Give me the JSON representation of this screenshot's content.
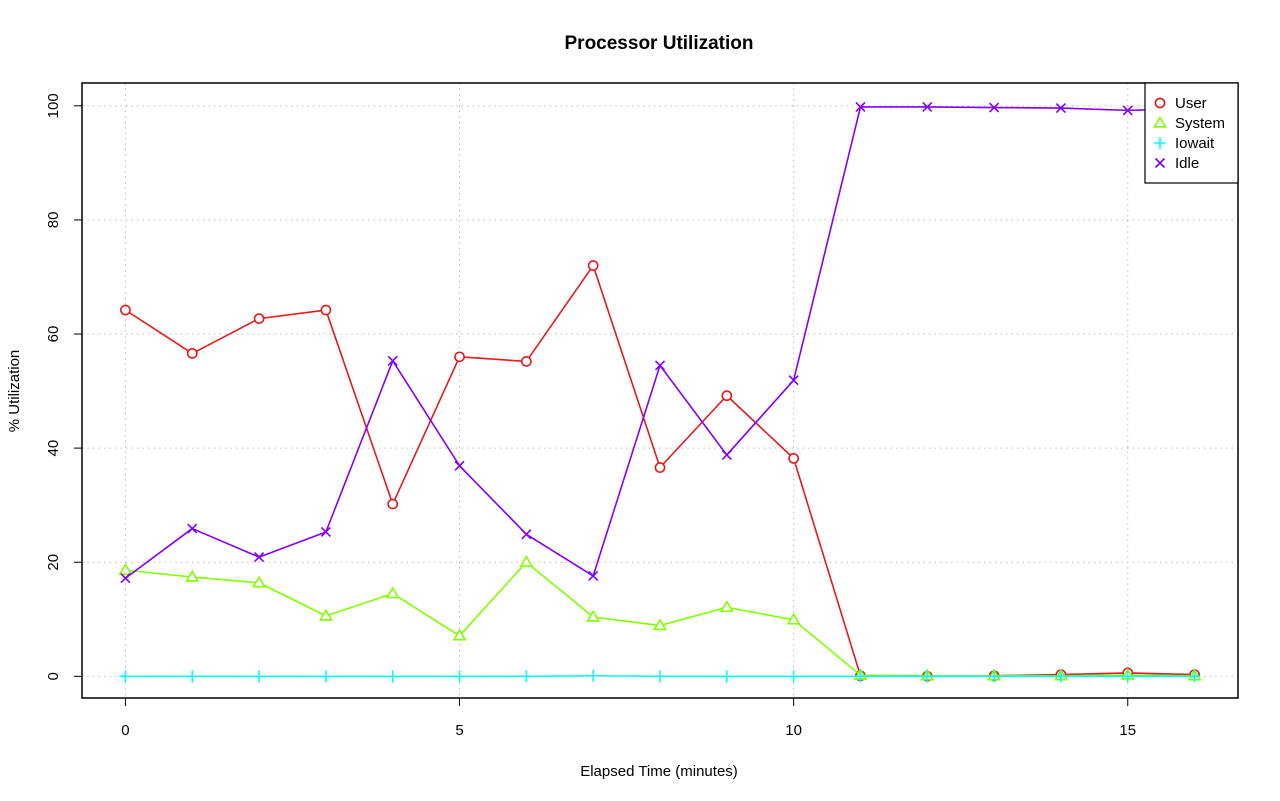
{
  "chart_data": {
    "type": "line",
    "title": "Processor Utilization",
    "xlabel": "Elapsed Time (minutes)",
    "ylabel": "% Utilization",
    "xlim": [
      -0.65,
      16.65
    ],
    "ylim": [
      -3.8,
      104
    ],
    "x_ticks": [
      0,
      5,
      10,
      15
    ],
    "y_ticks": [
      0,
      20,
      40,
      60,
      80,
      100
    ],
    "grid": true,
    "legend_position": "top-right",
    "x": [
      0,
      1,
      2,
      3,
      4,
      5,
      6,
      7,
      8,
      9,
      10,
      11,
      12,
      13,
      14,
      15,
      16
    ],
    "series": [
      {
        "name": "User",
        "color": "#e41a1c",
        "marker": "circle",
        "values": [
          64.2,
          56.6,
          62.7,
          64.2,
          30.2,
          56.0,
          55.2,
          72.0,
          36.6,
          49.2,
          38.2,
          0.1,
          0.0,
          0.1,
          0.3,
          0.6,
          0.3
        ]
      },
      {
        "name": "System",
        "color": "#80ff00",
        "marker": "triangle",
        "values": [
          18.6,
          17.4,
          16.4,
          10.6,
          14.5,
          7.1,
          20.0,
          10.4,
          8.9,
          12.1,
          9.9,
          0.2,
          0.1,
          0.1,
          0.1,
          0.2,
          0.1
        ]
      },
      {
        "name": "Iowait",
        "color": "#00ffff",
        "marker": "plus",
        "values": [
          0,
          0,
          0,
          0,
          0,
          0,
          0,
          0.1,
          0,
          0,
          0,
          0,
          0,
          0,
          0,
          0,
          0
        ]
      },
      {
        "name": "Idle",
        "color": "#8000ff",
        "marker": "cross",
        "values": [
          17.2,
          25.9,
          20.9,
          25.3,
          55.3,
          36.9,
          24.9,
          17.6,
          54.5,
          38.8,
          51.9,
          99.8,
          99.8,
          99.7,
          99.6,
          99.2,
          99.5
        ]
      }
    ]
  }
}
